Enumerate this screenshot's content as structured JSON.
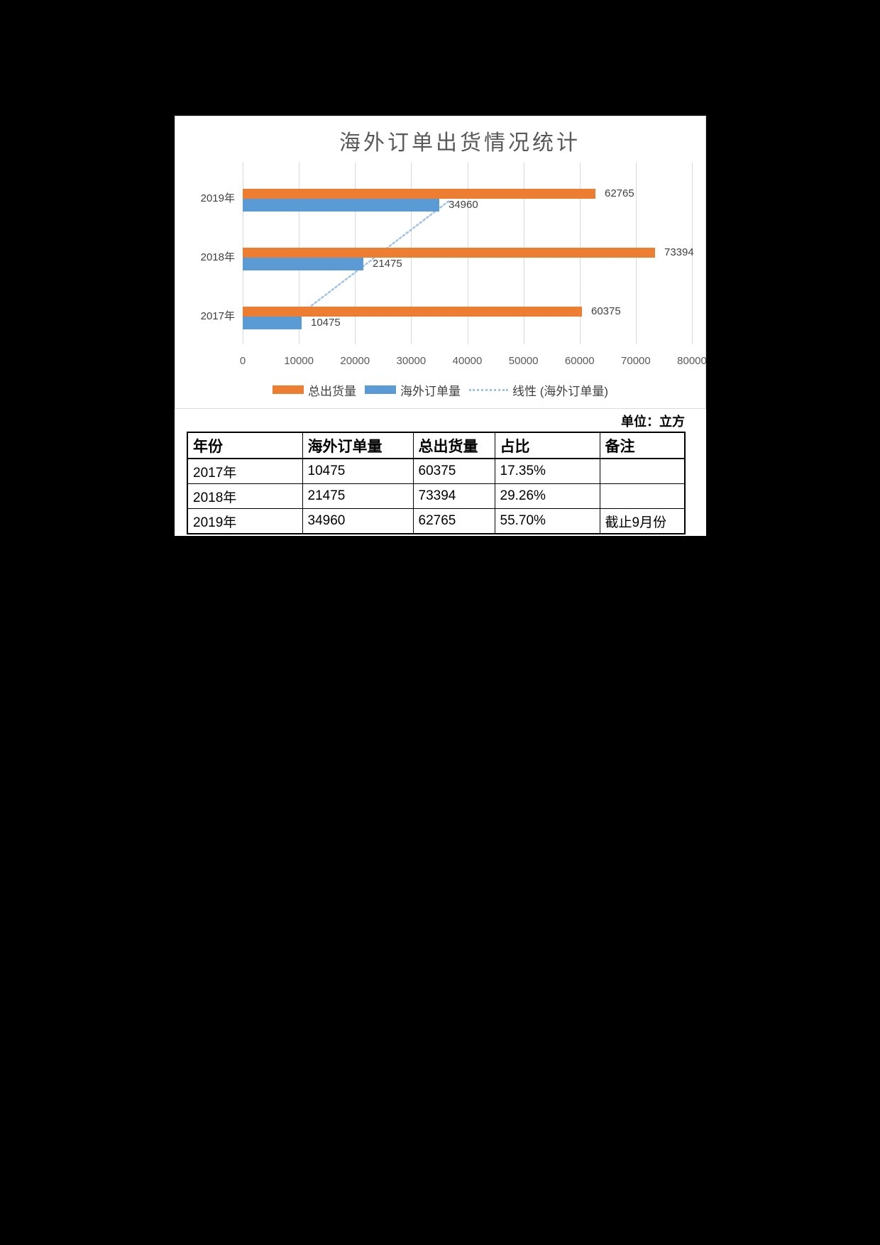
{
  "page": {
    "unit_label": "单位：立方"
  },
  "chart_data": {
    "type": "bar",
    "orientation": "horizontal",
    "title": "海外订单出货情况统计",
    "categories": [
      "2019年",
      "2018年",
      "2017年"
    ],
    "series": [
      {
        "name": "总出货量",
        "color": "#ED7D31",
        "values": [
          62765,
          73394,
          60375
        ]
      },
      {
        "name": "海外订单量",
        "color": "#5B9BD5",
        "values": [
          34960,
          21475,
          10475
        ]
      }
    ],
    "trendline": {
      "name": "线性 (海外订单量)",
      "of_series": "海外订单量",
      "color": "#9DC3E6",
      "style": "dotted"
    },
    "x_ticks": [
      "0",
      "10000",
      "20000",
      "30000",
      "40000",
      "50000",
      "60000",
      "70000",
      "80000"
    ],
    "xlim": [
      0,
      80000
    ],
    "grid": "vertical-gridlines",
    "gridline_color": "#D9D9D9",
    "legend_position": "bottom",
    "value_labels": true,
    "title_color": "#595959",
    "label_color": "#404040"
  },
  "table": {
    "headers": [
      "年份",
      "海外订单量",
      "总出货量",
      "占比",
      "备注"
    ],
    "rows": [
      [
        "2017年",
        "10475",
        "60375",
        "17.35%",
        ""
      ],
      [
        "2018年",
        "21475",
        "73394",
        "29.26%",
        ""
      ],
      [
        "2019年",
        "34960",
        "62765",
        "55.70%",
        "截止9月份"
      ]
    ]
  }
}
